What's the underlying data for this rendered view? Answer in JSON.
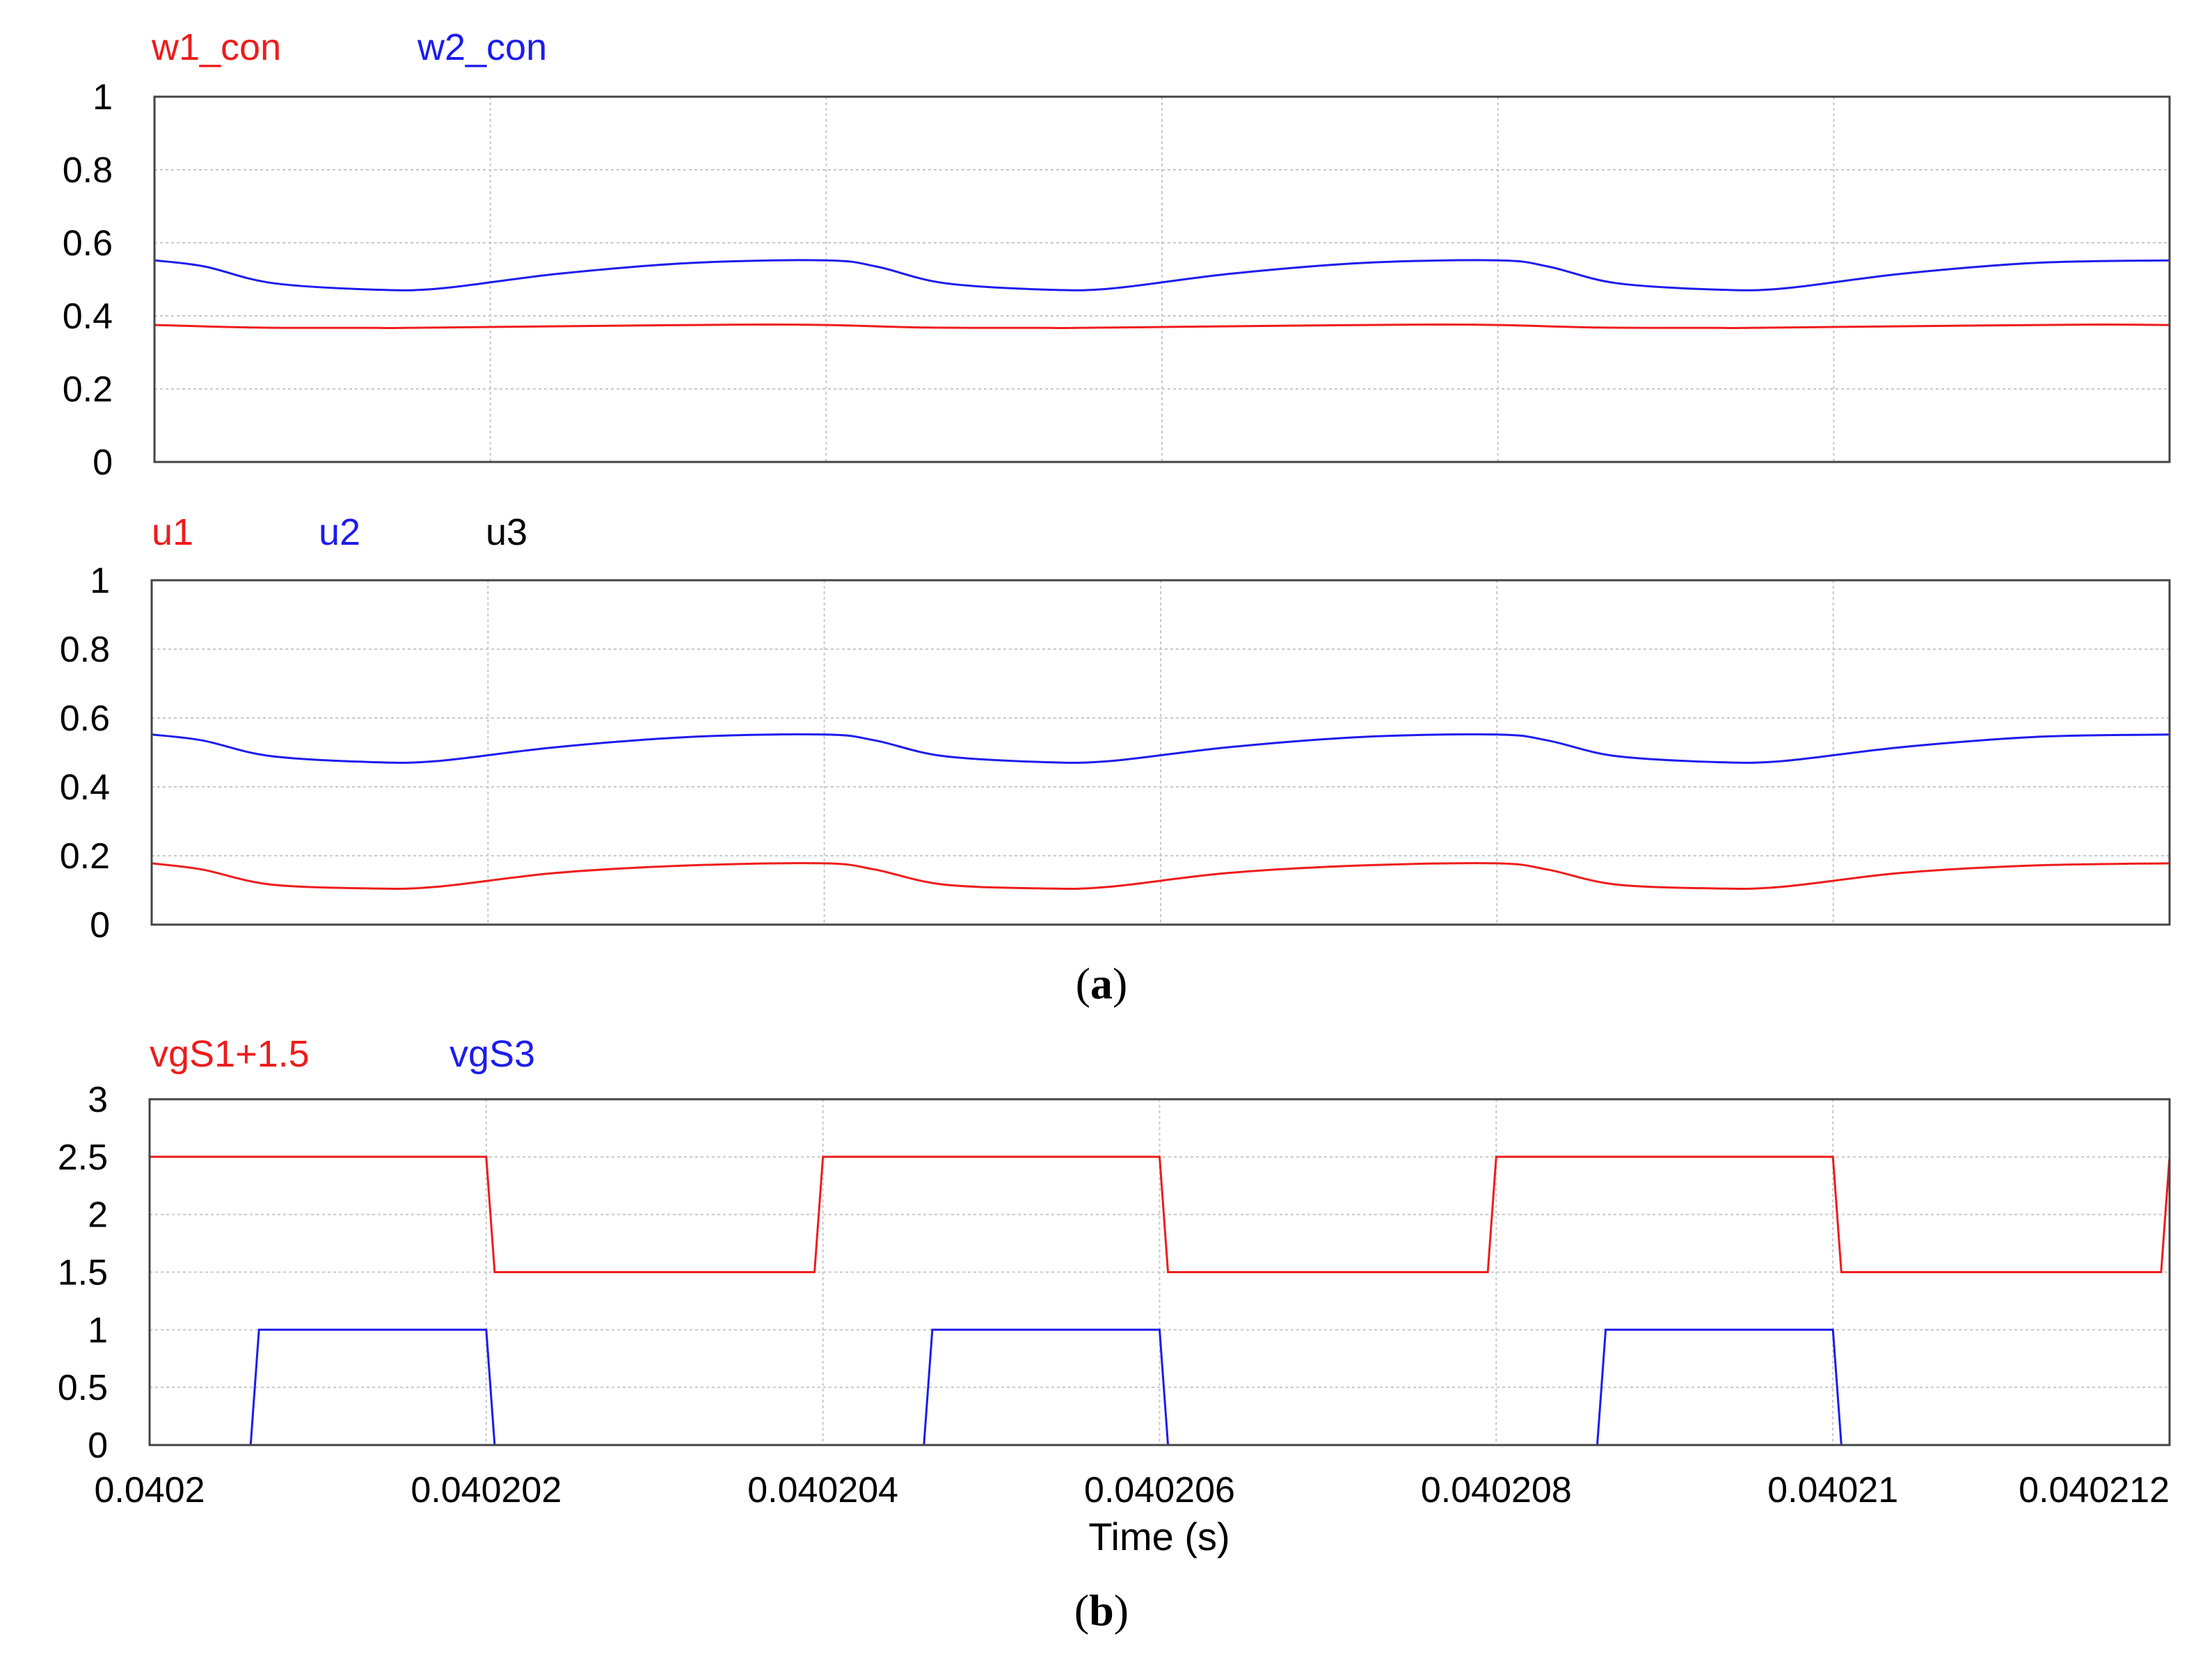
{
  "caption_a_letter": "a",
  "caption_b_letter": "b",
  "colors": {
    "red": "#ee1c1c",
    "blue": "#1c1cee",
    "black": "#000000"
  },
  "chart_data": [
    {
      "type": "line",
      "id": "top",
      "xlim": [
        0.0402,
        0.040212
      ],
      "ylim": [
        0,
        1
      ],
      "yticks": [
        "0",
        "0.2",
        "0.4",
        "0.6",
        "0.8",
        "1"
      ],
      "ytick_values": [
        0,
        0.2,
        0.4,
        0.6,
        0.8,
        1
      ],
      "grid": true,
      "legend_placement": "top-left",
      "series": [
        {
          "name": "w1_con",
          "color": "#ee1c1c",
          "x": [
            0.0402,
            0.0402006,
            0.0402013,
            0.0402015,
            0.0402025,
            0.0402035,
            0.040204,
            0.0402046,
            0.0402053,
            0.0402055,
            0.0402065,
            0.0402075,
            0.040208,
            0.0402086,
            0.0402093,
            0.0402095,
            0.0402105,
            0.0402115,
            0.040212
          ],
          "y": [
            0.375,
            0.368,
            0.367,
            0.367,
            0.372,
            0.376,
            0.375,
            0.368,
            0.367,
            0.367,
            0.372,
            0.376,
            0.375,
            0.368,
            0.367,
            0.367,
            0.372,
            0.376,
            0.375
          ]
        },
        {
          "name": "w2_con",
          "color": "#1c1cee",
          "x": [
            0.0402,
            0.0402003,
            0.0402007,
            0.0402013,
            0.0402017,
            0.0402024,
            0.0402032,
            0.040204,
            0.0402043,
            0.0402047,
            0.0402053,
            0.0402057,
            0.0402064,
            0.0402072,
            0.040208,
            0.0402083,
            0.0402087,
            0.0402093,
            0.0402097,
            0.0402104,
            0.0402112,
            0.040212
          ],
          "y": [
            0.552,
            0.535,
            0.49,
            0.472,
            0.475,
            0.515,
            0.545,
            0.552,
            0.535,
            0.49,
            0.472,
            0.475,
            0.515,
            0.545,
            0.552,
            0.535,
            0.49,
            0.472,
            0.475,
            0.515,
            0.545,
            0.552
          ]
        }
      ]
    },
    {
      "type": "line",
      "id": "middle",
      "xlim": [
        0.0402,
        0.040212
      ],
      "ylim": [
        0,
        1
      ],
      "yticks": [
        "0",
        "0.2",
        "0.4",
        "0.6",
        "0.8",
        "1"
      ],
      "ytick_values": [
        0,
        0.2,
        0.4,
        0.6,
        0.8,
        1
      ],
      "grid": true,
      "legend_placement": "top-left",
      "series": [
        {
          "name": "u1",
          "color": "#ee1c1c",
          "x": [
            0.0402,
            0.0402003,
            0.0402007,
            0.0402013,
            0.0402017,
            0.0402024,
            0.0402032,
            0.040204,
            0.0402043,
            0.0402047,
            0.0402053,
            0.0402057,
            0.0402064,
            0.0402072,
            0.040208,
            0.0402083,
            0.0402087,
            0.0402093,
            0.0402097,
            0.0402104,
            0.0402112,
            0.040212
          ],
          "y": [
            0.178,
            0.16,
            0.117,
            0.105,
            0.11,
            0.15,
            0.172,
            0.178,
            0.16,
            0.117,
            0.105,
            0.11,
            0.15,
            0.172,
            0.178,
            0.16,
            0.117,
            0.105,
            0.11,
            0.15,
            0.172,
            0.178
          ]
        },
        {
          "name": "u2",
          "color": "#1c1cee",
          "x": [
            0.0402,
            0.0402003,
            0.0402007,
            0.0402013,
            0.0402017,
            0.0402024,
            0.0402032,
            0.040204,
            0.0402043,
            0.0402047,
            0.0402053,
            0.0402057,
            0.0402064,
            0.0402072,
            0.040208,
            0.0402083,
            0.0402087,
            0.0402093,
            0.0402097,
            0.0402104,
            0.0402112,
            0.040212
          ],
          "y": [
            0.552,
            0.535,
            0.49,
            0.472,
            0.475,
            0.515,
            0.545,
            0.552,
            0.535,
            0.49,
            0.472,
            0.475,
            0.515,
            0.545,
            0.552,
            0.535,
            0.49,
            0.472,
            0.475,
            0.515,
            0.545,
            0.552
          ]
        },
        {
          "name": "u3",
          "color": "#000000",
          "x": [],
          "y": []
        }
      ]
    },
    {
      "type": "line",
      "id": "bottom",
      "xlim": [
        0.0402,
        0.040212
      ],
      "ylim": [
        0,
        3
      ],
      "yticks": [
        "0",
        "0.5",
        "1",
        "1.5",
        "2",
        "2.5",
        "3"
      ],
      "ytick_values": [
        0,
        0.5,
        1,
        1.5,
        2,
        2.5,
        3
      ],
      "xticks": [
        "0.0402",
        "0.040202",
        "0.040204",
        "0.040206",
        "0.040208",
        "0.04021",
        "0.040212"
      ],
      "xtick_values": [
        0.0402,
        0.040202,
        0.040204,
        0.040206,
        0.040208,
        0.04021,
        0.040212
      ],
      "xlabel": "Time (s)",
      "grid": true,
      "legend_placement": "top-left",
      "series": [
        {
          "name": "vgS1+1.5",
          "color": "#ee1c1c",
          "x": [
            0.0402,
            0.040202,
            0.04020205,
            0.04020395,
            0.040204,
            0.040206,
            0.04020605,
            0.04020795,
            0.040208,
            0.04021,
            0.04021005,
            0.04021195,
            0.040212
          ],
          "y": [
            2.5,
            2.5,
            1.5,
            1.5,
            2.5,
            2.5,
            1.5,
            1.5,
            2.5,
            2.5,
            1.5,
            1.5,
            2.5
          ]
        },
        {
          "name": "vgS3",
          "color": "#1c1cee",
          "x": [
            0.0402,
            0.0402006,
            0.04020065,
            0.040202,
            0.04020205,
            0.0402046,
            0.04020465,
            0.040206,
            0.04020605,
            0.0402086,
            0.04020865,
            0.04021,
            0.04021005
          ],
          "y": [
            0,
            0,
            1,
            1,
            0,
            0,
            1,
            1,
            0,
            0,
            1,
            1,
            0
          ]
        }
      ]
    }
  ]
}
